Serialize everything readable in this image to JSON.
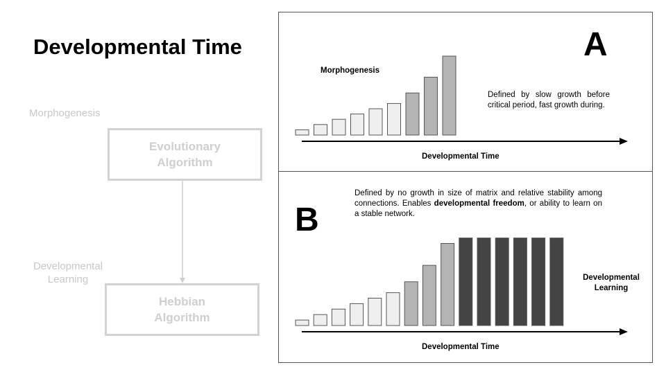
{
  "title": "Developmental Time",
  "left": {
    "morphogenesis_label": "Morphogenesis",
    "devlearn_line1": "Developmental",
    "devlearn_line2": "Learning",
    "evo_line1": "Evolutionary",
    "evo_line2": "Algorithm",
    "hebb_line1": "Hebbian",
    "hebb_line2": "Algorithm"
  },
  "panel_a": {
    "letter": "A",
    "title": "Morphogenesis",
    "description": "Defined by slow growth before critical period, fast growth during.",
    "axis_label": "Developmental Time",
    "bars": [
      {
        "level": 1,
        "color": "#efefef"
      },
      {
        "level": 2,
        "color": "#efefef"
      },
      {
        "level": 3,
        "color": "#efefef"
      },
      {
        "level": 4,
        "color": "#efefef"
      },
      {
        "level": 5,
        "color": "#efefef"
      },
      {
        "level": 6,
        "color": "#efefef"
      },
      {
        "level": 8,
        "color": "#b4b4b4"
      },
      {
        "level": 11,
        "color": "#b4b4b4"
      },
      {
        "level": 15,
        "color": "#b4b4b4"
      }
    ]
  },
  "panel_b": {
    "letter": "B",
    "desc_pre": "Defined by no growth in size of matrix and relative stability among connections. Enables ",
    "desc_bold": "developmental freedom",
    "desc_post": ", or ability to learn on a stable network.",
    "axis_label": "Developmental Time",
    "devlearn_line1": "Developmental",
    "devlearn_line2": "Learning",
    "bars": [
      {
        "level": 1,
        "color": "#efefef"
      },
      {
        "level": 2,
        "color": "#efefef"
      },
      {
        "level": 3,
        "color": "#efefef"
      },
      {
        "level": 4,
        "color": "#efefef"
      },
      {
        "level": 5,
        "color": "#efefef"
      },
      {
        "level": 6,
        "color": "#efefef"
      },
      {
        "level": 8,
        "color": "#b4b4b4"
      },
      {
        "level": 11,
        "color": "#b4b4b4"
      },
      {
        "level": 15,
        "color": "#b4b4b4"
      },
      {
        "level": 16,
        "color": "#444444"
      },
      {
        "level": 16,
        "color": "#444444"
      },
      {
        "level": 16,
        "color": "#444444"
      },
      {
        "level": 16,
        "color": "#444444"
      },
      {
        "level": 16,
        "color": "#444444"
      },
      {
        "level": 16,
        "color": "#444444"
      }
    ]
  }
}
